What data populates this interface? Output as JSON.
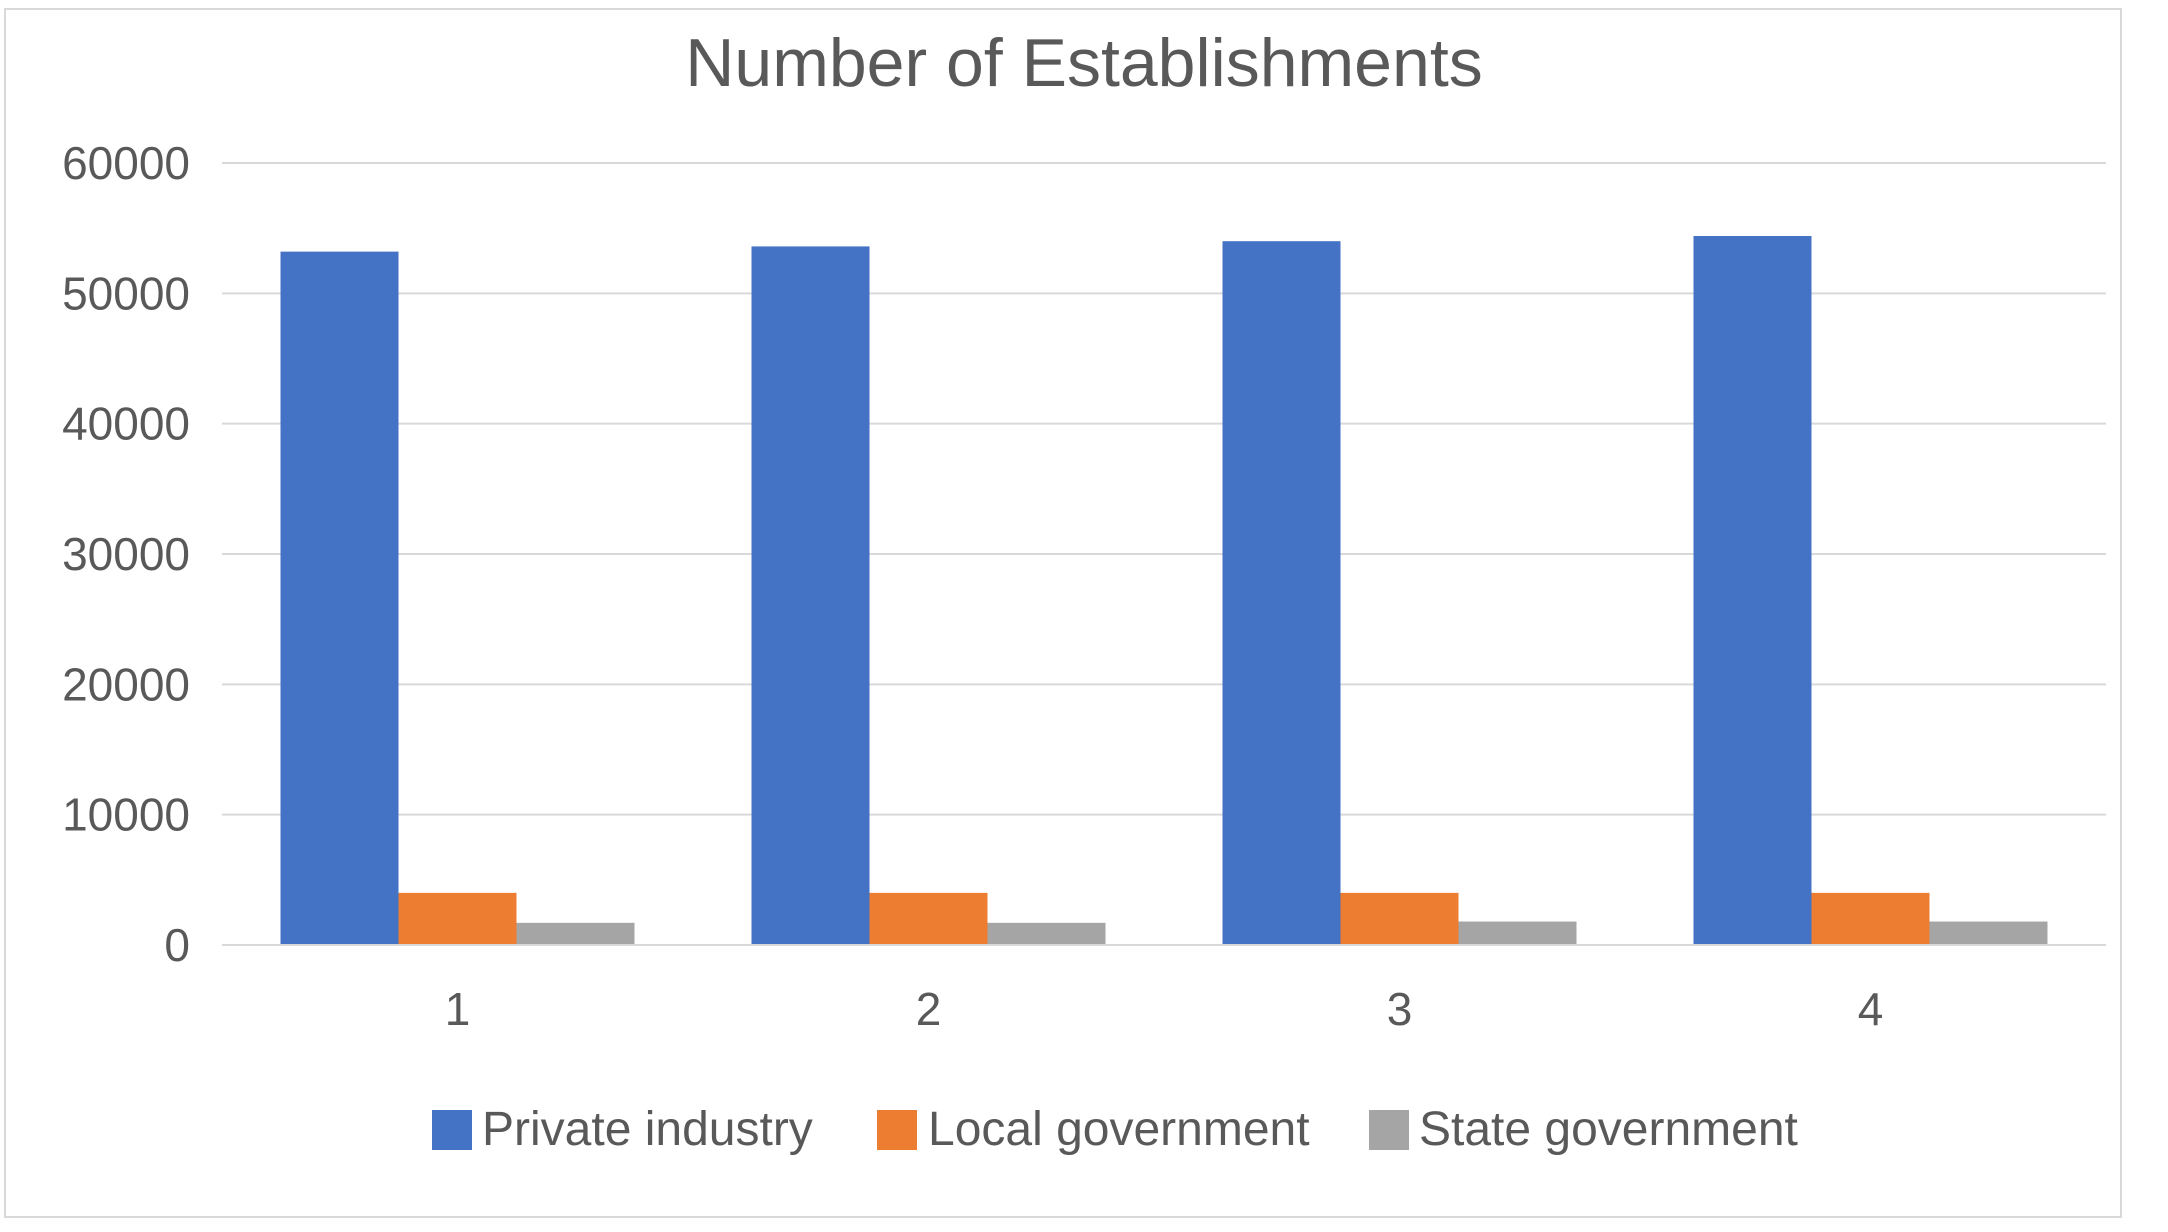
{
  "chart_data": {
    "type": "bar",
    "title": "Number of Establishments",
    "xlabel": "",
    "ylabel": "",
    "categories": [
      "1",
      "2",
      "3",
      "4"
    ],
    "series": [
      {
        "name": "Private industry",
        "color": "#4472C4",
        "values": [
          53200,
          53600,
          54000,
          54400
        ]
      },
      {
        "name": "Local government",
        "color": "#ED7D31",
        "values": [
          4000,
          4000,
          4000,
          4000
        ]
      },
      {
        "name": "State government",
        "color": "#A5A5A5",
        "values": [
          1700,
          1700,
          1800,
          1800
        ]
      }
    ],
    "ylim": [
      0,
      60000
    ],
    "yticks": [
      "0",
      "10000",
      "20000",
      "30000",
      "40000",
      "50000",
      "60000"
    ],
    "grid": true,
    "legend_position": "bottom"
  }
}
